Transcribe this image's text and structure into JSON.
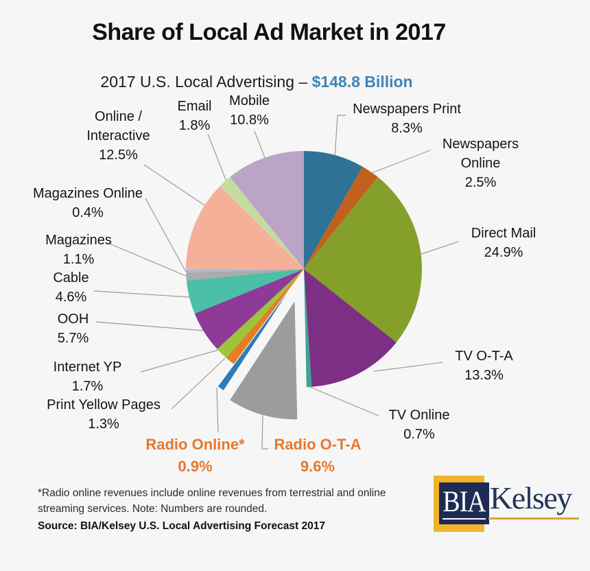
{
  "page": {
    "title": "Share of Local Ad Market in 2017",
    "subtitle_prefix": "2017 U.S. Local Advertising – ",
    "subtitle_amount": "$148.8 Billion",
    "footnote_lines": [
      "*Radio online revenues include online revenues from terrestrial and online",
      "streaming services. Note: Numbers are rounded."
    ],
    "source": "Source: BIA/Kelsey U.S. Local Advertising Forecast 2017"
  },
  "logo": {
    "box_text": "BIA",
    "name_text": "Kelsey",
    "yellow": "#f0b32b",
    "navy": "#1e2c55",
    "gold": "#d8a92a"
  },
  "colors": {
    "background": "#f6f6f6",
    "accent_blue": "#3d85b8",
    "highlight_orange": "#e8772b",
    "leader_line": "#9a9a9a"
  },
  "chart_data": {
    "type": "pie",
    "title": "Share of Local Ad Market in 2017",
    "subtitle": "2017 U.S. Local Advertising – $148.8 Billion",
    "total_label": "$148.8 Billion",
    "units": "percent share",
    "start_angle_deg": 0,
    "direction": "clockwise",
    "legend": "none (direct labels with leader lines)",
    "slices": [
      {
        "label": "Newspapers Print",
        "pct_label": "8.3%",
        "value": 8.3,
        "color": "#2e7396",
        "exploded": false
      },
      {
        "label": "Newspapers Online",
        "label_lines": [
          "Newspapers",
          "Online"
        ],
        "pct_label": "2.5%",
        "value": 2.5,
        "color": "#c2611e",
        "exploded": false
      },
      {
        "label": "Direct Mail",
        "pct_label": "24.9%",
        "value": 24.9,
        "color": "#84a02a",
        "exploded": false
      },
      {
        "label": "TV O-T-A",
        "pct_label": "13.3%",
        "value": 13.3,
        "color": "#7c2f83",
        "exploded": false
      },
      {
        "label": "TV Online",
        "pct_label": "0.7%",
        "value": 0.7,
        "color": "#3fa492",
        "exploded": false
      },
      {
        "label": "Radio O-T-A",
        "pct_label": "9.6%",
        "value": 9.6,
        "color": "#9c9c9c",
        "exploded": true,
        "highlight": true
      },
      {
        "label": "Radio Online*",
        "pct_label": "0.9%",
        "value": 0.9,
        "color": "#2d7cb7",
        "exploded": true,
        "highlight": true
      },
      {
        "label": "Print Yellow Pages",
        "pct_label": "1.3%",
        "value": 1.3,
        "color": "#e57d25",
        "exploded": false
      },
      {
        "label": "Internet YP",
        "pct_label": "1.7%",
        "value": 1.7,
        "color": "#9dc43b",
        "exploded": false
      },
      {
        "label": "OOH",
        "pct_label": "5.7%",
        "value": 5.7,
        "color": "#8e3a96",
        "exploded": false
      },
      {
        "label": "Cable",
        "pct_label": "4.6%",
        "value": 4.6,
        "color": "#4cbfa8",
        "exploded": false
      },
      {
        "label": "Magazines",
        "pct_label": "1.1%",
        "value": 1.1,
        "color": "#ababab",
        "exploded": false
      },
      {
        "label": "Magazines Online",
        "pct_label": "0.4%",
        "value": 0.4,
        "color": "#a9bbd3",
        "exploded": false
      },
      {
        "label": "Online / Interactive",
        "label_lines": [
          "Online /",
          "Interactive"
        ],
        "pct_label": "12.5%",
        "value": 12.5,
        "color": "#f5b09a",
        "exploded": false
      },
      {
        "label": "Email",
        "pct_label": "1.8%",
        "value": 1.8,
        "color": "#c4db9f",
        "exploded": false
      },
      {
        "label": "Mobile",
        "pct_label": "10.8%",
        "value": 10.8,
        "color": "#bca4c7",
        "exploded": false
      }
    ]
  }
}
